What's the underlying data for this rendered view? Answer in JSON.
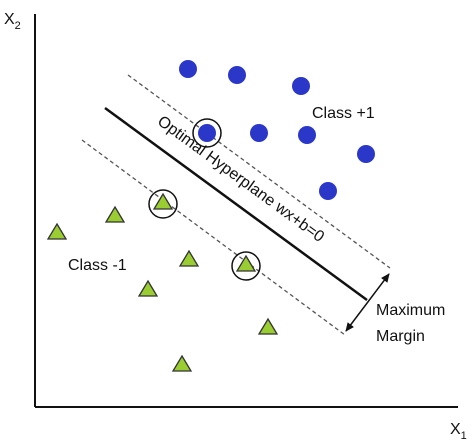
{
  "axes": {
    "y_label": {
      "base": "X",
      "sub": "2"
    },
    "x_label": {
      "base": "X",
      "sub": "1"
    }
  },
  "labels": {
    "positive_class": "Class +1",
    "negative_class": "Class -1",
    "hyperplane": "Optimal Hyperplane wx+b=0",
    "margin": [
      "Maximum",
      "Margin"
    ]
  }
}
